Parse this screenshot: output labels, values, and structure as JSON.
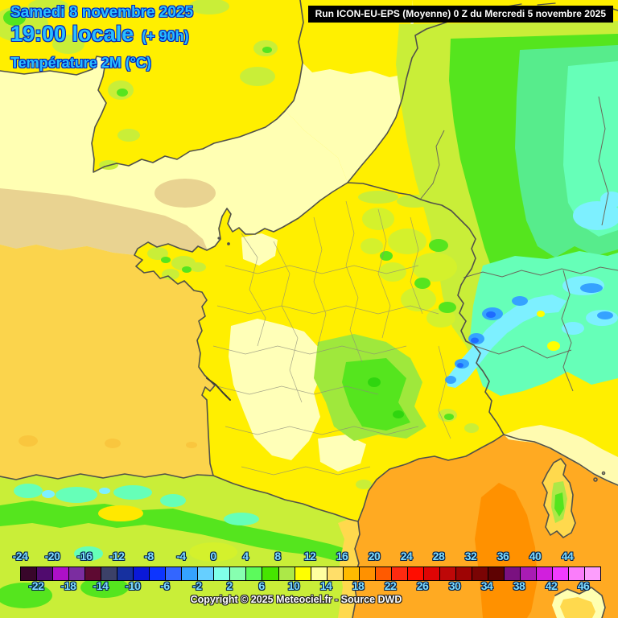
{
  "header": {
    "date": "Samedi 8 novembre 2025",
    "time": "19:00 locale",
    "offset": "(+ 90h)",
    "param": "Température 2M (°C)"
  },
  "run_banner": "Run ICON-EU-EPS (Moyenne) 0 Z du Mercredi 5 novembre 2025",
  "footer": {
    "copyright": "Copyright © 2025 Meteociel.fr - Source DWD"
  },
  "scale": {
    "unit": "°C",
    "range_start": -24,
    "range_step": 2,
    "labels_top": [
      "-24",
      "-20",
      "-16",
      "-12",
      "-8",
      "-4",
      "0",
      "4",
      "8",
      "12",
      "16",
      "20",
      "24",
      "28",
      "32",
      "36",
      "40",
      "44"
    ],
    "labels_bottom": [
      "-22",
      "-18",
      "-14",
      "-10",
      "-6",
      "-2",
      "2",
      "6",
      "10",
      "14",
      "18",
      "22",
      "26",
      "30",
      "34",
      "38",
      "42",
      "46"
    ],
    "cell_colors": [
      "#38062a",
      "#500b6e",
      "#ad10c8",
      "#7b2da0",
      "#5e0a32",
      "#3c4168",
      "#16309f",
      "#0a18d8",
      "#0d35ff",
      "#3366ff",
      "#35a2ff",
      "#66cfff",
      "#80ffe8",
      "#87ffb0",
      "#5cfa5c",
      "#46e500",
      "#ace848",
      "#ffff00",
      "#ffffa0",
      "#ffde69",
      "#ffbb00",
      "#ff9100",
      "#ff5a00",
      "#ff2a10",
      "#ff0d00",
      "#df0404",
      "#be0808",
      "#9e0404",
      "#7a0404",
      "#5e0202",
      "#7a1180",
      "#a81cb4",
      "#d11fdd",
      "#f13cff",
      "#fa7dfa",
      "#fc9efc"
    ]
  },
  "palette": {
    "header_text": "#29bfff",
    "header_outline": "#0022bb",
    "tick_text": "#7fdcff",
    "banner_bg": "#000000",
    "banner_text": "#ffffff",
    "map_land_yellow": "#ffef00",
    "map_land_cream": "#ffffb8",
    "map_yellow_green": "#c9ee38",
    "map_green": "#55e51e",
    "map_spring": "#57ec8c",
    "map_mint": "#66ffb8",
    "map_cyan": "#7df0ff",
    "map_blue": "#35a2ff",
    "map_deep_blue": "#1e6bff",
    "map_sea_channel": "#ffffb3",
    "map_sea_atlantic": "#fbd44c",
    "map_sea_tan": "#e9d391",
    "map_sea_med": "#ffaa22",
    "map_sea_med_deep": "#ff9100",
    "map_coastline": "#51514a"
  }
}
